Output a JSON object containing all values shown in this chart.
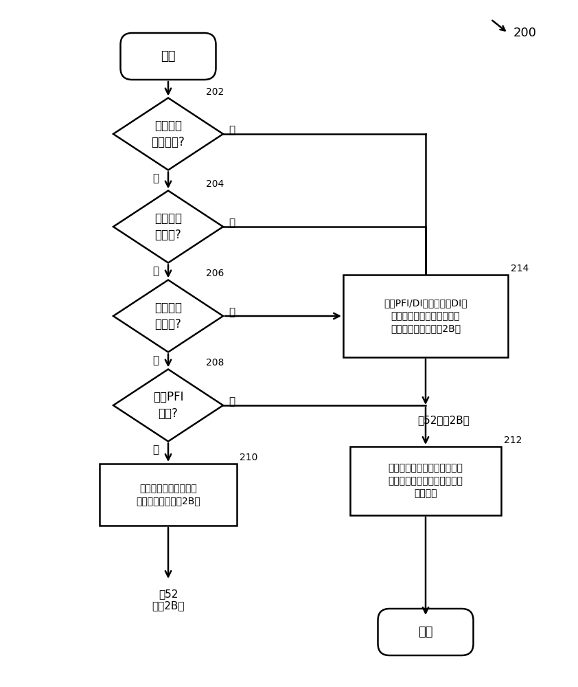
{
  "bg_color": "#ffffff",
  "line_color": "#000000",
  "title_label": "200",
  "start_text": "开始",
  "diamond1_text": "经过阈值\n数的起动?",
  "diamond1_label": "202",
  "diamond2_text": "行驶阈值\n英里数?",
  "diamond2_label": "204",
  "diamond3_text": "退出预递\n送状况?",
  "diamond3_label": "206",
  "diamond4_text": "存在PFI\n硬件?",
  "diamond4_label": "208",
  "box_right_text": "对于PFI/DI系统和仅有DI的\n系统，使用递送后校准调节\n发动机燃料供给（图2B）",
  "box_right_label": "214",
  "box_bottom_left_text": "使用预递送校准调节发\n动机燃料供给（图2B）",
  "box_bottom_left_label": "210",
  "box_bottom_right_text": "用进气道燃料嘴射调节发动机\n燃料供给，并根据需要仅激活\n直接噴射",
  "box_bottom_right_label": "212",
  "yes_label": "是",
  "no_label": "否",
  "to252_right": "刲52（图2B）",
  "to252_left": "刲52\n（图2B）",
  "end_text": "结束"
}
